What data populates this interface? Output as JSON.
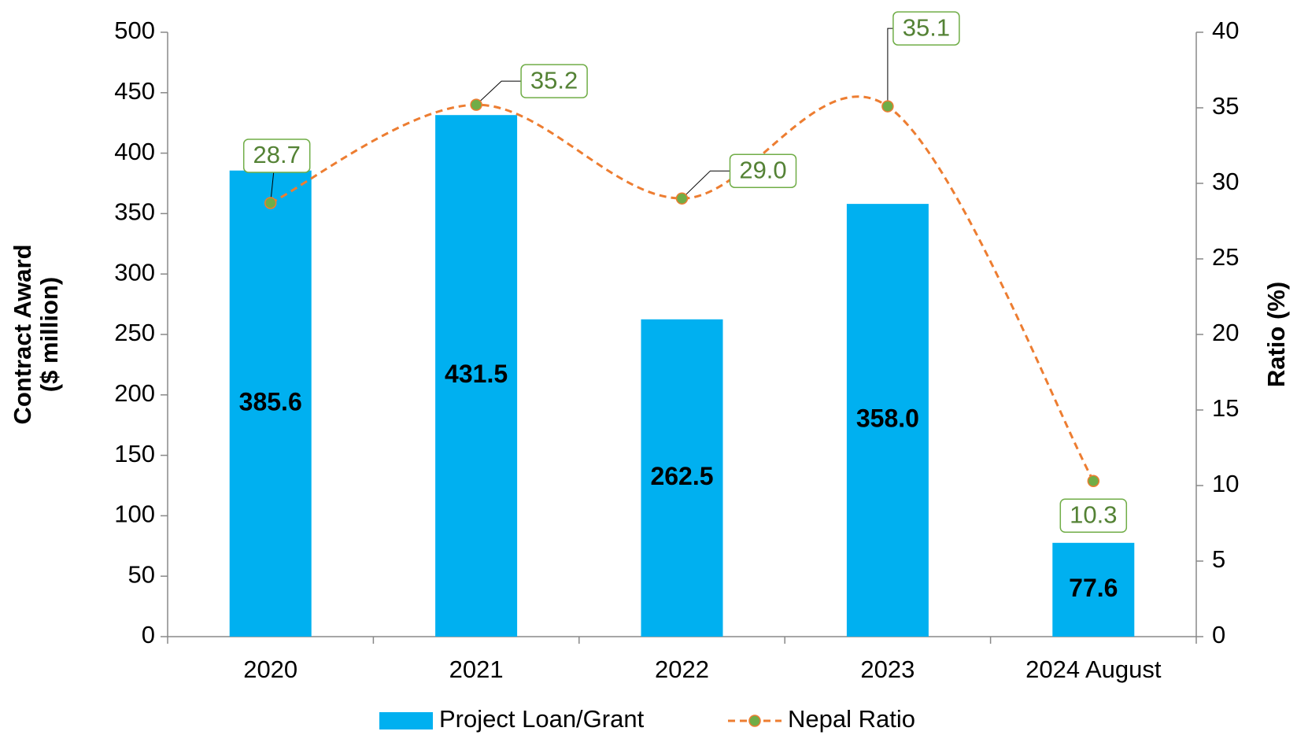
{
  "chart_data": {
    "type": "bar",
    "categories": [
      "2020",
      "2021",
      "2022",
      "2023",
      "2024 August"
    ],
    "ylabel": [
      "Contract Award",
      "($ million)"
    ],
    "y2label": "Ratio (%)",
    "ylim": [
      0,
      500
    ],
    "yticks": [
      0,
      50,
      100,
      150,
      200,
      250,
      300,
      350,
      400,
      450,
      500
    ],
    "y2lim": [
      0,
      40
    ],
    "y2ticks": [
      0,
      5,
      10,
      15,
      20,
      25,
      30,
      35,
      40
    ],
    "legend": "bottom",
    "series": [
      {
        "name": "Project Loan/Grant",
        "type": "bar",
        "color": "#00b0f0",
        "values": [
          385.6,
          431.5,
          262.5,
          358.0,
          77.6
        ],
        "value_labels": [
          "385.6",
          "431.5",
          "262.5",
          "358.0",
          "77.6"
        ]
      },
      {
        "name": "Nepal Ratio",
        "type": "line",
        "axis": "y2",
        "color": "#ed7d31",
        "marker_color": "#70ad47",
        "values": [
          28.7,
          35.2,
          29.0,
          35.1,
          10.3
        ],
        "value_labels": [
          "28.7",
          "35.2",
          "29.0",
          "35.1",
          "10.3"
        ]
      }
    ]
  }
}
